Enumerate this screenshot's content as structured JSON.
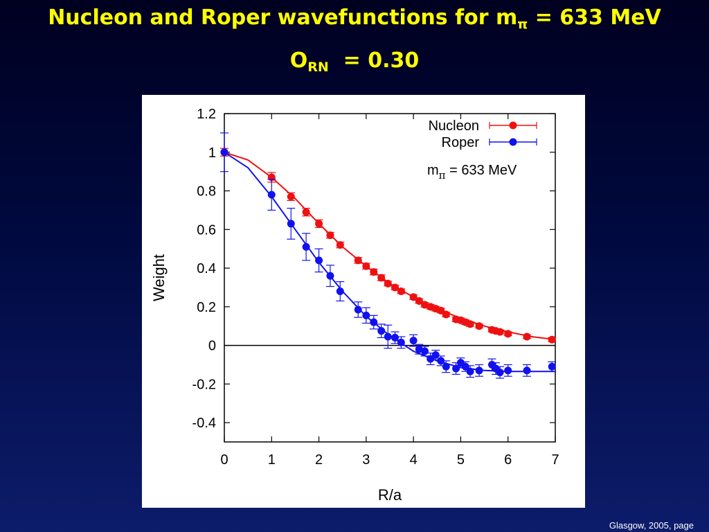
{
  "slide": {
    "title_line1_prefix": "Nucleon and Roper wavefunctions for m",
    "title_line1_sub": "π",
    "title_line1_suffix": " = 633 MeV",
    "title_line2_prefix": "O",
    "title_line2_sub": "RN",
    "title_line2_suffix": "  = 0.30",
    "footer": "Glasgow, 2005,  page"
  },
  "colors": {
    "background": "#000a40",
    "title": "#ffff00",
    "nucleon": "#ee1111",
    "roper": "#1111ee"
  },
  "chart_data": {
    "type": "scatter",
    "xlabel": "R/a",
    "ylabel": "Weight",
    "xlim": [
      0,
      7
    ],
    "ylim": [
      -0.5,
      1.2
    ],
    "x_ticks": [
      "0",
      "1",
      "2",
      "3",
      "4",
      "5",
      "6",
      "7"
    ],
    "y_ticks": [
      "1.2",
      "1",
      "0.8",
      "0.6",
      "0.4",
      "0.2",
      "0",
      "-0.2",
      "-0.4"
    ],
    "annotation": "m",
    "annotation_sub": "π",
    "annotation_suffix": " = 633 MeV",
    "legend_position": "top-right",
    "zero_line": true,
    "series": [
      {
        "name": "Nucleon",
        "color": "#ee1111",
        "points": [
          {
            "x": 0,
            "y": 1.0,
            "err": 0.02
          },
          {
            "x": 1.0,
            "y": 0.87,
            "err": 0.025
          },
          {
            "x": 1.41,
            "y": 0.77,
            "err": 0.02
          },
          {
            "x": 1.73,
            "y": 0.69,
            "err": 0.02
          },
          {
            "x": 2.0,
            "y": 0.63,
            "err": 0.02
          },
          {
            "x": 2.24,
            "y": 0.57,
            "err": 0.015
          },
          {
            "x": 2.45,
            "y": 0.52,
            "err": 0.015
          },
          {
            "x": 2.83,
            "y": 0.44,
            "err": 0.015
          },
          {
            "x": 3.0,
            "y": 0.41,
            "err": 0.015
          },
          {
            "x": 3.16,
            "y": 0.38,
            "err": 0.015
          },
          {
            "x": 3.32,
            "y": 0.35,
            "err": 0.015
          },
          {
            "x": 3.46,
            "y": 0.32,
            "err": 0.012
          },
          {
            "x": 3.61,
            "y": 0.3,
            "err": 0.012
          },
          {
            "x": 3.74,
            "y": 0.28,
            "err": 0.012
          },
          {
            "x": 4.0,
            "y": 0.25,
            "err": 0.012
          },
          {
            "x": 4.12,
            "y": 0.23,
            "err": 0.012
          },
          {
            "x": 4.24,
            "y": 0.21,
            "err": 0.012
          },
          {
            "x": 4.36,
            "y": 0.2,
            "err": 0.012
          },
          {
            "x": 4.47,
            "y": 0.19,
            "err": 0.012
          },
          {
            "x": 4.58,
            "y": 0.18,
            "err": 0.012
          },
          {
            "x": 4.69,
            "y": 0.16,
            "err": 0.012
          },
          {
            "x": 4.9,
            "y": 0.135,
            "err": 0.012
          },
          {
            "x": 5.0,
            "y": 0.13,
            "err": 0.012
          },
          {
            "x": 5.1,
            "y": 0.12,
            "err": 0.012
          },
          {
            "x": 5.2,
            "y": 0.11,
            "err": 0.012
          },
          {
            "x": 5.39,
            "y": 0.1,
            "err": 0.01
          },
          {
            "x": 5.66,
            "y": 0.08,
            "err": 0.01
          },
          {
            "x": 5.74,
            "y": 0.075,
            "err": 0.01
          },
          {
            "x": 5.83,
            "y": 0.07,
            "err": 0.01
          },
          {
            "x": 6.0,
            "y": 0.06,
            "err": 0.01
          },
          {
            "x": 6.4,
            "y": 0.045,
            "err": 0.01
          },
          {
            "x": 6.93,
            "y": 0.03,
            "err": 0.01
          }
        ],
        "curve": [
          [
            0,
            1.0
          ],
          [
            0.5,
            0.96
          ],
          [
            1.0,
            0.87
          ],
          [
            1.5,
            0.76
          ],
          [
            2.0,
            0.63
          ],
          [
            2.5,
            0.51
          ],
          [
            3.0,
            0.41
          ],
          [
            3.5,
            0.32
          ],
          [
            4.0,
            0.25
          ],
          [
            4.5,
            0.19
          ],
          [
            5.0,
            0.14
          ],
          [
            5.5,
            0.1
          ],
          [
            6.0,
            0.07
          ],
          [
            6.5,
            0.045
          ],
          [
            7.0,
            0.03
          ]
        ]
      },
      {
        "name": "Roper",
        "color": "#1111ee",
        "points": [
          {
            "x": 0,
            "y": 1.0,
            "err": 0.1
          },
          {
            "x": 1.0,
            "y": 0.78,
            "err": 0.08
          },
          {
            "x": 1.41,
            "y": 0.63,
            "err": 0.08
          },
          {
            "x": 1.73,
            "y": 0.51,
            "err": 0.07
          },
          {
            "x": 2.0,
            "y": 0.44,
            "err": 0.06
          },
          {
            "x": 2.24,
            "y": 0.36,
            "err": 0.055
          },
          {
            "x": 2.45,
            "y": 0.28,
            "err": 0.05
          },
          {
            "x": 2.83,
            "y": 0.185,
            "err": 0.04
          },
          {
            "x": 3.0,
            "y": 0.155,
            "err": 0.04
          },
          {
            "x": 3.16,
            "y": 0.12,
            "err": 0.035
          },
          {
            "x": 3.32,
            "y": 0.075,
            "err": 0.035
          },
          {
            "x": 3.46,
            "y": 0.045,
            "err": 0.06
          },
          {
            "x": 3.61,
            "y": 0.04,
            "err": 0.03
          },
          {
            "x": 3.74,
            "y": 0.015,
            "err": 0.03
          },
          {
            "x": 4.0,
            "y": 0.025,
            "err": 0.03
          },
          {
            "x": 4.12,
            "y": -0.02,
            "err": 0.025
          },
          {
            "x": 4.24,
            "y": -0.03,
            "err": 0.025
          },
          {
            "x": 4.36,
            "y": -0.07,
            "err": 0.03
          },
          {
            "x": 4.47,
            "y": -0.05,
            "err": 0.025
          },
          {
            "x": 4.58,
            "y": -0.08,
            "err": 0.025
          },
          {
            "x": 4.69,
            "y": -0.11,
            "err": 0.03
          },
          {
            "x": 4.9,
            "y": -0.12,
            "err": 0.03
          },
          {
            "x": 5.0,
            "y": -0.09,
            "err": 0.025
          },
          {
            "x": 5.1,
            "y": -0.11,
            "err": 0.025
          },
          {
            "x": 5.2,
            "y": -0.135,
            "err": 0.03
          },
          {
            "x": 5.39,
            "y": -0.13,
            "err": 0.03
          },
          {
            "x": 5.66,
            "y": -0.1,
            "err": 0.03
          },
          {
            "x": 5.74,
            "y": -0.12,
            "err": 0.03
          },
          {
            "x": 5.83,
            "y": -0.14,
            "err": 0.03
          },
          {
            "x": 6.0,
            "y": -0.13,
            "err": 0.03
          },
          {
            "x": 6.4,
            "y": -0.13,
            "err": 0.03
          },
          {
            "x": 6.93,
            "y": -0.11,
            "err": 0.025
          }
        ],
        "curve": [
          [
            0,
            1.0
          ],
          [
            0.5,
            0.92
          ],
          [
            1.0,
            0.77
          ],
          [
            1.5,
            0.6
          ],
          [
            2.0,
            0.43
          ],
          [
            2.5,
            0.28
          ],
          [
            3.0,
            0.15
          ],
          [
            3.5,
            0.05
          ],
          [
            4.0,
            -0.03
          ],
          [
            4.5,
            -0.08
          ],
          [
            5.0,
            -0.115
          ],
          [
            5.5,
            -0.13
          ],
          [
            6.0,
            -0.135
          ],
          [
            6.5,
            -0.135
          ],
          [
            7.0,
            -0.135
          ]
        ]
      }
    ]
  }
}
